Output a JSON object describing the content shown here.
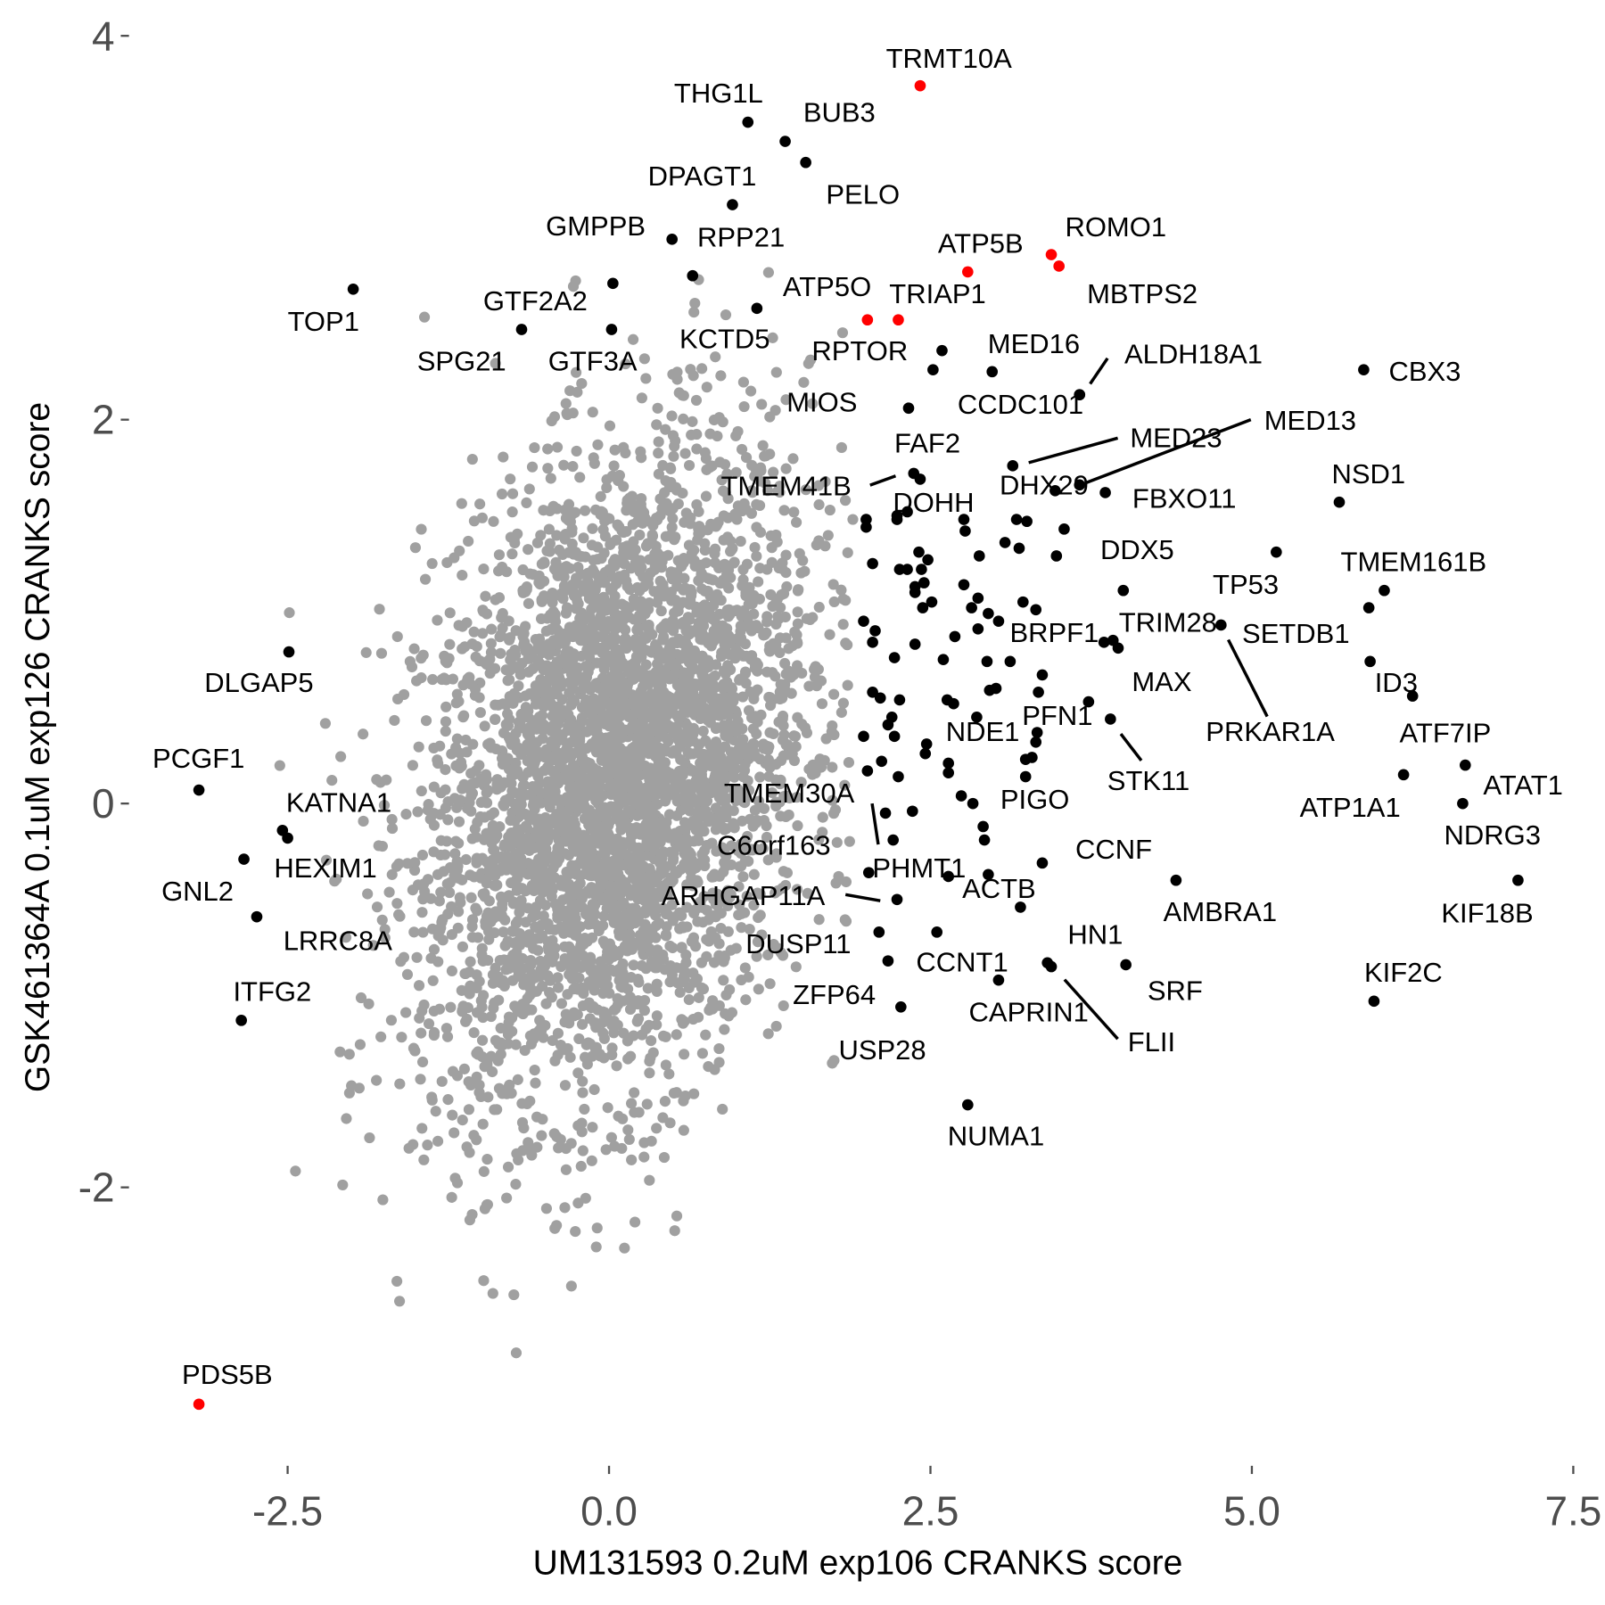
{
  "chart_data": {
    "type": "scatter",
    "title": "",
    "xlabel": "UM131593 0.2uM exp106 CRANKS score",
    "ylabel": "GSK461364A 0.1uM exp126 CRANKS score",
    "xlim": [
      -3.7,
      7.75
    ],
    "ylim": [
      -3.39,
      4.08
    ],
    "x_ticks": [
      "-2.5",
      "0.0",
      "2.5",
      "5.0",
      "7.5"
    ],
    "x_tick_values": [
      -2.5,
      0,
      2.5,
      5,
      7.5
    ],
    "y_ticks": [
      "-2",
      "0",
      "2",
      "4"
    ],
    "y_tick_values": [
      -2,
      0,
      2,
      4
    ],
    "grid": false,
    "legend": "none",
    "colors": {
      "background_genes": "#a0a0a0",
      "hit_genes": "#000000",
      "highlight_genes": "#ff0000",
      "tick": "#4d4d4d"
    },
    "background_cloud": {
      "approx_count": 4000,
      "center": [
        0.05,
        0.15
      ],
      "sd": [
        0.75,
        0.85
      ],
      "correlation": 0.3
    },
    "labeled_points": [
      {
        "label": "TRMT10A",
        "x": 2.42,
        "y": 3.74,
        "group": "highlight"
      },
      {
        "label": "THG1L",
        "x": 1.08,
        "y": 3.55,
        "group": "hit"
      },
      {
        "label": "BUB3",
        "x": 1.37,
        "y": 3.45,
        "group": "hit"
      },
      {
        "label": "PELO",
        "x": 1.53,
        "y": 3.34,
        "group": "hit"
      },
      {
        "label": "DPAGT1",
        "x": 0.96,
        "y": 3.12,
        "group": "hit"
      },
      {
        "label": "GMPPB",
        "x": 0.49,
        "y": 2.94,
        "group": "hit"
      },
      {
        "label": "RPP21",
        "x": 0.65,
        "y": 2.75,
        "group": "hit"
      },
      {
        "label": "ROMO1",
        "x": 3.44,
        "y": 2.86,
        "group": "highlight"
      },
      {
        "label": "MBTPS2",
        "x": 3.5,
        "y": 2.8,
        "group": "highlight"
      },
      {
        "label": "ATP5B",
        "x": 2.79,
        "y": 2.77,
        "group": "highlight"
      },
      {
        "label": "TOP1",
        "x": -1.99,
        "y": 2.68,
        "group": "hit"
      },
      {
        "label": "GTF2A2",
        "x": 0.03,
        "y": 2.71,
        "group": "hit"
      },
      {
        "label": "ATP5O",
        "x": 2.01,
        "y": 2.52,
        "group": "highlight"
      },
      {
        "label": "TRIAP1",
        "x": 2.25,
        "y": 2.52,
        "group": "highlight"
      },
      {
        "label": "KCTD5",
        "x": 1.15,
        "y": 2.58,
        "group": "hit"
      },
      {
        "label": "SPG21",
        "x": -0.68,
        "y": 2.47,
        "group": "hit"
      },
      {
        "label": "GTF3A",
        "x": 0.02,
        "y": 2.47,
        "group": "hit"
      },
      {
        "label": "RPTOR",
        "x": 2.52,
        "y": 2.26,
        "group": "hit"
      },
      {
        "label": "MED16",
        "x": 2.98,
        "y": 2.25,
        "group": "hit"
      },
      {
        "label": "ALDH18A1",
        "x": 3.66,
        "y": 2.13,
        "group": "hit"
      },
      {
        "label": "CBX3",
        "x": 5.87,
        "y": 2.26,
        "group": "hit"
      },
      {
        "label": "MIOS",
        "x": 2.33,
        "y": 2.06,
        "group": "hit"
      },
      {
        "label": "CCDC101",
        "x": 3.66,
        "y": 2.13,
        "group": "hit"
      },
      {
        "label": "MED23",
        "x": 3.14,
        "y": 1.76,
        "group": "hit"
      },
      {
        "label": "MED13",
        "x": 3.66,
        "y": 1.66,
        "group": "hit"
      },
      {
        "label": "FAF2",
        "x": 2.42,
        "y": 1.69,
        "group": "hit"
      },
      {
        "label": "TMEM41B",
        "x": 2.37,
        "y": 1.72,
        "group": "hit"
      },
      {
        "label": "DOHH",
        "x": 2.24,
        "y": 1.5,
        "group": "hit"
      },
      {
        "label": "DHX29",
        "x": 3.47,
        "y": 1.63,
        "group": "hit"
      },
      {
        "label": "FBXO11",
        "x": 3.86,
        "y": 1.62,
        "group": "hit"
      },
      {
        "label": "NSD1",
        "x": 5.68,
        "y": 1.57,
        "group": "hit"
      },
      {
        "label": "DDX5",
        "x": 4.0,
        "y": 1.11,
        "group": "hit"
      },
      {
        "label": "TP53",
        "x": 5.19,
        "y": 1.31,
        "group": "hit"
      },
      {
        "label": "TMEM161B",
        "x": 6.03,
        "y": 1.11,
        "group": "hit"
      },
      {
        "label": "SETDB1",
        "x": 5.91,
        "y": 1.02,
        "group": "hit"
      },
      {
        "label": "TRIM28",
        "x": 3.96,
        "y": 0.81,
        "group": "hit"
      },
      {
        "label": "BRPF1",
        "x": 3.85,
        "y": 0.84,
        "group": "hit"
      },
      {
        "label": "PRKAR1A",
        "x": 4.76,
        "y": 0.93,
        "group": "hit"
      },
      {
        "label": "ID3",
        "x": 5.92,
        "y": 0.74,
        "group": "hit"
      },
      {
        "label": "MAX",
        "x": 3.73,
        "y": 0.53,
        "group": "hit"
      },
      {
        "label": "ATF7IP",
        "x": 6.25,
        "y": 0.56,
        "group": "hit"
      },
      {
        "label": "PFN1",
        "x": 3.33,
        "y": 0.37,
        "group": "hit"
      },
      {
        "label": "NDE1",
        "x": 2.47,
        "y": 0.31,
        "group": "hit"
      },
      {
        "label": "STK11",
        "x": 3.9,
        "y": 0.44,
        "group": "hit"
      },
      {
        "label": "ATAT1",
        "x": 6.66,
        "y": 0.2,
        "group": "hit"
      },
      {
        "label": "ATP1A1",
        "x": 6.18,
        "y": 0.15,
        "group": "hit"
      },
      {
        "label": "NDRG3",
        "x": 6.64,
        "y": 0.0,
        "group": "hit"
      },
      {
        "label": "PIGO",
        "x": 2.83,
        "y": 0.0,
        "group": "hit"
      },
      {
        "label": "TMEM30A",
        "x": 2.15,
        "y": -0.05,
        "group": "hit"
      },
      {
        "label": "C6orf163",
        "x": 2.21,
        "y": -0.19,
        "group": "hit"
      },
      {
        "label": "PHMT1",
        "x": 2.02,
        "y": -0.36,
        "group": "hit"
      },
      {
        "label": "ACTB",
        "x": 2.64,
        "y": -0.38,
        "group": "hit"
      },
      {
        "label": "CCNF",
        "x": 3.37,
        "y": -0.31,
        "group": "hit"
      },
      {
        "label": "AMBRA1",
        "x": 4.41,
        "y": -0.4,
        "group": "hit"
      },
      {
        "label": "KIF18B",
        "x": 7.07,
        "y": -0.4,
        "group": "hit"
      },
      {
        "label": "ARHGAP11A",
        "x": 2.24,
        "y": -0.5,
        "group": "hit"
      },
      {
        "label": "DUSP11",
        "x": 2.1,
        "y": -0.67,
        "group": "hit"
      },
      {
        "label": "CCNT1",
        "x": 2.55,
        "y": -0.67,
        "group": "hit"
      },
      {
        "label": "HN1",
        "x": 3.41,
        "y": -0.83,
        "group": "hit"
      },
      {
        "label": "SRF",
        "x": 4.02,
        "y": -0.84,
        "group": "hit"
      },
      {
        "label": "KIF2C",
        "x": 5.95,
        "y": -1.03,
        "group": "hit"
      },
      {
        "label": "ZFP64",
        "x": 2.17,
        "y": -0.82,
        "group": "hit"
      },
      {
        "label": "CAPRIN1",
        "x": 3.03,
        "y": -0.92,
        "group": "hit"
      },
      {
        "label": "FLII",
        "x": 3.44,
        "y": -0.85,
        "group": "hit"
      },
      {
        "label": "USP28",
        "x": 2.27,
        "y": -1.06,
        "group": "hit"
      },
      {
        "label": "NUMA1",
        "x": 2.79,
        "y": -1.57,
        "group": "hit"
      },
      {
        "label": "PDS5B",
        "x": -3.19,
        "y": -3.13,
        "group": "highlight"
      },
      {
        "label": "DLGAP5",
        "x": -2.49,
        "y": 0.79,
        "group": "hit"
      },
      {
        "label": "PCGF1",
        "x": -3.19,
        "y": 0.07,
        "group": "hit"
      },
      {
        "label": "KATNA1",
        "x": -2.54,
        "y": -0.14,
        "group": "hit"
      },
      {
        "label": "HEXIM1",
        "x": -2.5,
        "y": -0.18,
        "group": "hit"
      },
      {
        "label": "GNL2",
        "x": -2.84,
        "y": -0.29,
        "group": "hit"
      },
      {
        "label": "LRRC8A",
        "x": -2.74,
        "y": -0.59,
        "group": "hit"
      },
      {
        "label": "ITFG2",
        "x": -2.86,
        "y": -1.13,
        "group": "hit"
      }
    ],
    "unlabeled_hits": [
      [
        2.59,
        2.36
      ],
      [
        2.0,
        1.48
      ],
      [
        2.0,
        1.44
      ],
      [
        2.24,
        1.48
      ],
      [
        2.32,
        1.52
      ],
      [
        2.76,
        1.48
      ],
      [
        2.77,
        1.42
      ],
      [
        3.17,
        1.48
      ],
      [
        3.25,
        1.47
      ],
      [
        3.54,
        1.43
      ],
      [
        3.08,
        1.36
      ],
      [
        3.19,
        1.33
      ],
      [
        3.48,
        1.29
      ],
      [
        2.88,
        1.29
      ],
      [
        2.05,
        1.25
      ],
      [
        2.26,
        1.22
      ],
      [
        2.32,
        1.22
      ],
      [
        2.41,
        1.31
      ],
      [
        2.48,
        1.27
      ],
      [
        2.43,
        1.22
      ],
      [
        2.45,
        1.15
      ],
      [
        2.38,
        1.13
      ],
      [
        2.38,
        1.1
      ],
      [
        2.76,
        1.14
      ],
      [
        2.87,
        1.07
      ],
      [
        2.82,
        1.02
      ],
      [
        3.22,
        1.05
      ],
      [
        3.32,
        1.01
      ],
      [
        2.44,
        1.02
      ],
      [
        2.51,
        1.05
      ],
      [
        2.95,
        0.99
      ],
      [
        3.03,
        0.95
      ],
      [
        1.98,
        0.95
      ],
      [
        2.07,
        0.9
      ],
      [
        2.05,
        0.84
      ],
      [
        2.87,
        0.91
      ],
      [
        2.69,
        0.87
      ],
      [
        2.38,
        0.83
      ],
      [
        2.22,
        0.76
      ],
      [
        2.6,
        0.75
      ],
      [
        2.94,
        0.74
      ],
      [
        3.12,
        0.74
      ],
      [
        3.37,
        0.67
      ],
      [
        2.96,
        0.59
      ],
      [
        3.01,
        0.6
      ],
      [
        3.34,
        0.58
      ],
      [
        2.05,
        0.58
      ],
      [
        2.11,
        0.55
      ],
      [
        2.26,
        0.54
      ],
      [
        2.63,
        0.54
      ],
      [
        2.68,
        0.52
      ],
      [
        2.2,
        0.45
      ],
      [
        2.17,
        0.41
      ],
      [
        2.22,
        0.35
      ],
      [
        1.98,
        0.35
      ],
      [
        2.86,
        0.45
      ],
      [
        3.32,
        0.32
      ],
      [
        3.24,
        0.23
      ],
      [
        3.29,
        0.24
      ],
      [
        2.46,
        0.26
      ],
      [
        2.12,
        0.22
      ],
      [
        2.01,
        0.17
      ],
      [
        2.25,
        0.14
      ],
      [
        2.64,
        0.21
      ],
      [
        2.64,
        0.16
      ],
      [
        3.24,
        0.14
      ],
      [
        2.74,
        0.04
      ],
      [
        2.36,
        -0.04
      ],
      [
        2.91,
        -0.12
      ],
      [
        2.92,
        -0.19
      ],
      [
        2.95,
        -0.37
      ],
      [
        3.2,
        -0.54
      ],
      [
        3.92,
        0.85
      ]
    ]
  }
}
